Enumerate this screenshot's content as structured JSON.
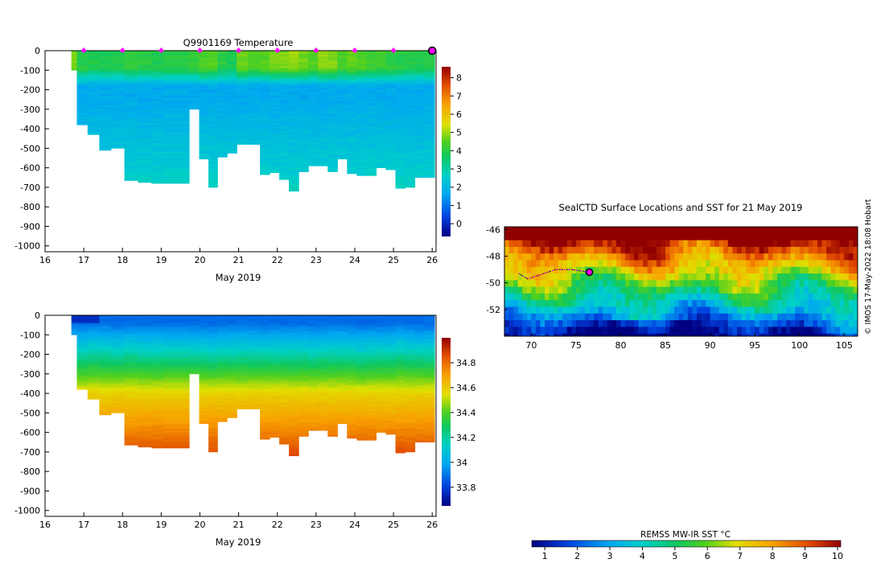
{
  "chart_data": [
    {
      "type": "heatmap",
      "title": "Q9901169  Temperature",
      "xlabel": "May 2019",
      "ylabel": "",
      "xlim": [
        16,
        26.1
      ],
      "ylim": [
        -1030,
        0
      ],
      "x_ticks": [
        "16",
        "17",
        "18",
        "19",
        "20",
        "21",
        "22",
        "23",
        "24",
        "25",
        "26"
      ],
      "y_ticks": [
        "0",
        "-100",
        "-200",
        "-300",
        "-400",
        "-500",
        "-600",
        "-700",
        "-800",
        "-900",
        "-1000"
      ],
      "colorbar": {
        "min": -0.7,
        "max": 8.6,
        "ticks": [
          "0",
          "1",
          "2",
          "3",
          "4",
          "5",
          "6",
          "7",
          "8"
        ]
      },
      "profile_markers_day": [
        17,
        18,
        19,
        20,
        21,
        22,
        23,
        24,
        25,
        26
      ],
      "profile_days": [
        16.68,
        16.82,
        17.1,
        17.4,
        17.7,
        18.05,
        18.4,
        18.75,
        19.05,
        19.72,
        19.98,
        20.22,
        20.45,
        20.7,
        20.95,
        21.25,
        21.55,
        21.8,
        22.05,
        22.3,
        22.55,
        22.8,
        23.05,
        23.3,
        23.55,
        23.8,
        24.05,
        24.3,
        24.55,
        24.8,
        25.05,
        25.3,
        25.55,
        25.8,
        26.05
      ],
      "profile_max_depth": [
        100,
        380,
        430,
        510,
        500,
        665,
        675,
        680,
        680,
        300,
        555,
        700,
        545,
        525,
        480,
        480,
        635,
        625,
        660,
        720,
        620,
        590,
        590,
        620,
        555,
        630,
        640,
        640,
        600,
        610,
        705,
        700,
        650,
        650,
        650
      ],
      "surface_temperature": [
        4.8,
        4.0,
        3.9,
        3.8,
        3.9,
        4.1,
        4.0,
        3.9,
        4.0,
        4.1,
        4.4,
        4.5,
        4.0,
        3.8,
        4.7,
        4.4,
        4.5,
        4.7,
        4.8,
        5.0,
        4.7,
        4.5,
        4.9,
        4.8,
        4.4,
        4.6,
        4.4,
        4.2,
        4.3,
        4.1,
        4.0,
        4.0,
        3.9,
        3.9,
        3.8
      ]
    },
    {
      "type": "heatmap",
      "title": "",
      "xlabel": "May 2019",
      "ylabel": "",
      "xlim": [
        16,
        26.1
      ],
      "ylim": [
        -1030,
        0
      ],
      "x_ticks": [
        "16",
        "17",
        "18",
        "19",
        "20",
        "21",
        "22",
        "23",
        "24",
        "25",
        "26"
      ],
      "y_ticks": [
        "0",
        "-100",
        "-200",
        "-300",
        "-400",
        "-500",
        "-600",
        "-700",
        "-800",
        "-900",
        "-1000"
      ],
      "colorbar": {
        "min": 33.65,
        "max": 35.0,
        "ticks": [
          "33.8",
          "34",
          "34.2",
          "34.4",
          "34.6",
          "34.8"
        ]
      },
      "profile_days": [
        16.68,
        16.82,
        17.1,
        17.4,
        17.7,
        18.05,
        18.4,
        18.75,
        19.05,
        19.72,
        19.98,
        20.22,
        20.45,
        20.7,
        20.95,
        21.25,
        21.55,
        21.8,
        22.05,
        22.3,
        22.55,
        22.8,
        23.05,
        23.3,
        23.55,
        23.8,
        24.05,
        24.3,
        24.55,
        24.8,
        25.05,
        25.3,
        25.55,
        25.8,
        26.05
      ],
      "profile_max_depth": [
        100,
        380,
        430,
        510,
        500,
        665,
        675,
        680,
        680,
        300,
        555,
        700,
        545,
        525,
        480,
        480,
        635,
        625,
        660,
        720,
        620,
        590,
        590,
        620,
        555,
        630,
        640,
        640,
        600,
        610,
        705,
        700,
        650,
        650,
        650
      ],
      "halocline_depth": [
        150,
        150,
        140,
        140,
        150,
        140,
        150,
        150,
        150,
        150,
        150,
        160,
        150,
        150,
        150,
        150,
        150,
        150,
        150,
        150,
        150,
        160,
        150,
        150,
        150,
        150,
        160,
        150,
        150,
        150,
        140,
        150,
        150,
        150,
        150
      ]
    },
    {
      "type": "heatmap",
      "title": "SealCTD Surface Locations and SST for 21 May 2019",
      "xlabel": "",
      "ylabel": "",
      "xlim": [
        67,
        106.5
      ],
      "ylim": [
        -54,
        -45.8
      ],
      "x_ticks": [
        "70",
        "75",
        "80",
        "85",
        "90",
        "95",
        "100",
        "105"
      ],
      "y_ticks": [
        "-46",
        "-48",
        "-50",
        "-52"
      ],
      "side_text": "© IMOS 17-May-2022 18:08 Hobart",
      "colorbar": {
        "label": "REMSS MW-IR SST °C",
        "min": 0.6,
        "max": 10.1,
        "ticks": [
          "1",
          "2",
          "3",
          "4",
          "5",
          "6",
          "7",
          "8",
          "9",
          "10"
        ]
      },
      "track_points": [
        [
          68.6,
          -49.3
        ],
        [
          69.6,
          -49.7
        ],
        [
          71.0,
          -49.4
        ],
        [
          72.7,
          -49.0
        ],
        [
          74.5,
          -49.0
        ],
        [
          76.5,
          -49.2
        ]
      ],
      "current_position": [
        76.5,
        -49.2
      ]
    }
  ]
}
